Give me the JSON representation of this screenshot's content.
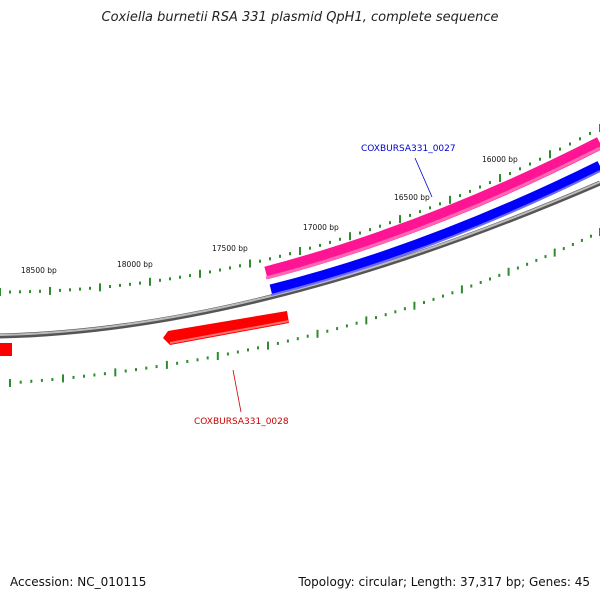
{
  "title": "Coxiella burnetii RSA 331 plasmid QpH1, complete sequence",
  "footer": {
    "accession": "Accession: NC_010115",
    "summary": "Topology: circular; Length: 37,317 bp; Genes: 45"
  },
  "colors": {
    "forward_gene": "#ff1493",
    "forward_cds": "#0000ff",
    "reverse_gene": "#ff0000",
    "backbone": "#888888",
    "ticks": "#2e8b2e",
    "forward_label": "#0000cc",
    "reverse_label": "#cc0000"
  },
  "ticks": {
    "labels": [
      "16000 bp",
      "16500 bp",
      "17000 bp",
      "17500 bp",
      "18000 bp",
      "18500 bp"
    ]
  },
  "genes": [
    {
      "label": "COXBURSA331_0027",
      "strand": "forward"
    },
    {
      "label": "COXBURSA331_0028",
      "strand": "reverse"
    }
  ]
}
